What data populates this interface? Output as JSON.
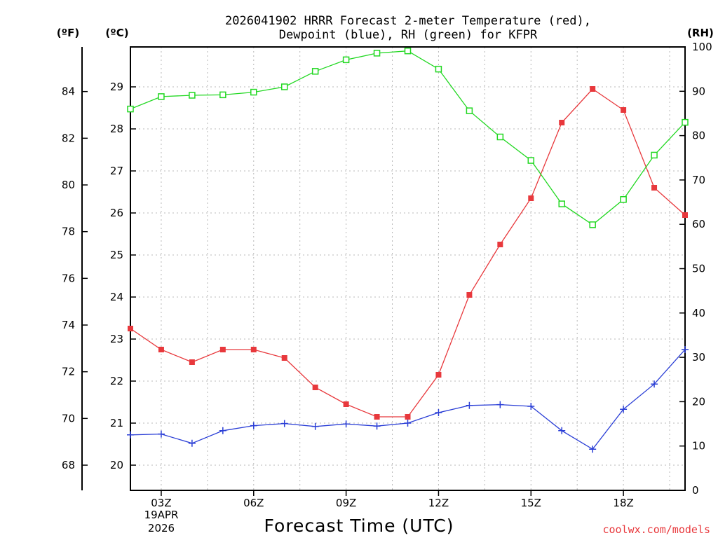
{
  "chart_data": {
    "type": "line",
    "title_line1": "2026041902 HRRR Forecast 2-meter Temperature (red),",
    "title_line2": "Dewpoint (blue), RH (green) for KFPR",
    "xlabel": "Forecast Time (UTC)",
    "credit": "coolwx.com/models",
    "units": {
      "fahrenheit": "(ºF)",
      "celsius": "(ºC)",
      "rh": "(RH)"
    },
    "date_label": [
      "19APR",
      "2026"
    ],
    "x_hours": [
      2,
      3,
      4,
      5,
      6,
      7,
      8,
      9,
      10,
      11,
      12,
      13,
      14,
      15,
      16,
      17,
      18,
      19,
      20
    ],
    "xlim": [
      2,
      20
    ],
    "x_ticks": [
      {
        "hour": 3,
        "label": "03Z"
      },
      {
        "hour": 6,
        "label": "06Z"
      },
      {
        "hour": 9,
        "label": "09Z"
      },
      {
        "hour": 12,
        "label": "12Z"
      },
      {
        "hour": 15,
        "label": "15Z"
      },
      {
        "hour": 18,
        "label": "18Z"
      }
    ],
    "celsius_axis": {
      "ylim": [
        19.4,
        29.95
      ],
      "ticks": [
        "20",
        "21",
        "22",
        "23",
        "24",
        "25",
        "26",
        "27",
        "28",
        "29"
      ]
    },
    "fahrenheit_axis": {
      "ylim": [
        66.92,
        85.91
      ],
      "ticks": [
        "68",
        "70",
        "72",
        "74",
        "76",
        "78",
        "80",
        "82",
        "84"
      ]
    },
    "rh_axis": {
      "ylim": [
        0,
        100
      ],
      "ticks": [
        "0",
        "10",
        "20",
        "30",
        "40",
        "50",
        "60",
        "70",
        "80",
        "90",
        "100"
      ]
    },
    "series": [
      {
        "name": "Temperature",
        "axis": "celsius",
        "color": "#e8383c",
        "marker": "filled-square",
        "values": [
          23.25,
          22.75,
          22.45,
          22.75,
          22.75,
          22.55,
          21.85,
          21.45,
          21.15,
          21.15,
          22.15,
          24.05,
          25.25,
          26.35,
          28.15,
          28.95,
          28.45,
          26.6,
          25.95
        ]
      },
      {
        "name": "Dewpoint",
        "axis": "celsius",
        "color": "#2a3ed6",
        "marker": "plus",
        "values": [
          20.72,
          20.74,
          20.52,
          20.82,
          20.94,
          20.99,
          20.92,
          20.98,
          20.93,
          21.0,
          21.25,
          21.42,
          21.44,
          21.4,
          20.82,
          20.38,
          21.33,
          21.93,
          22.75
        ]
      },
      {
        "name": "RH",
        "axis": "rh",
        "color": "#22d822",
        "marker": "open-square",
        "values": [
          86,
          88.8,
          89.1,
          89.2,
          89.8,
          91,
          94.5,
          97.1,
          98.6,
          99.1,
          95,
          85.6,
          79.7,
          74.4,
          64.6,
          59.9,
          65.6,
          75.6,
          83
        ]
      }
    ],
    "grid": true
  }
}
